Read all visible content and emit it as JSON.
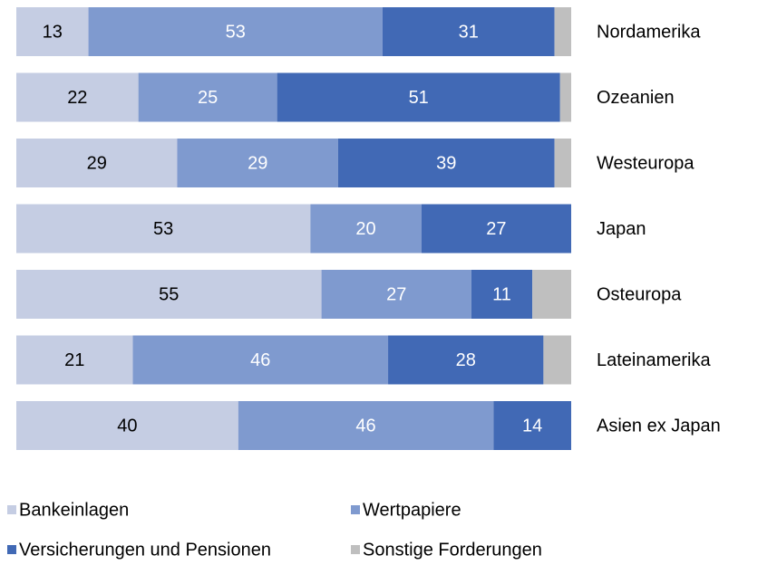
{
  "chart_data": {
    "type": "stacked_barh",
    "categories": [
      "Nordamerika",
      "Ozeanien",
      "Westeuropa",
      "Japan",
      "Osteuropa",
      "Lateinamerika",
      "Asien ex Japan"
    ],
    "series": [
      {
        "name": "Bankeinlagen",
        "color": "#c5cde3",
        "label_color": "#000000",
        "values": [
          13,
          22,
          29,
          53,
          55,
          21,
          40
        ]
      },
      {
        "name": "Wertpapiere",
        "color": "#7f9acf",
        "label_color": "#ffffff",
        "values": [
          53,
          25,
          29,
          20,
          27,
          46,
          46
        ]
      },
      {
        "name": "Versicherungen und Pensionen",
        "color": "#4169b5",
        "label_color": "#ffffff",
        "values": [
          31,
          51,
          39,
          27,
          11,
          28,
          14
        ]
      },
      {
        "name": "Sonstige Forderungen",
        "color": "#bfbfbf",
        "data_labels": false,
        "values": [
          3,
          2,
          3,
          0,
          7,
          5,
          0
        ]
      }
    ],
    "xlim": [
      0,
      100
    ],
    "legend": "bottom"
  }
}
